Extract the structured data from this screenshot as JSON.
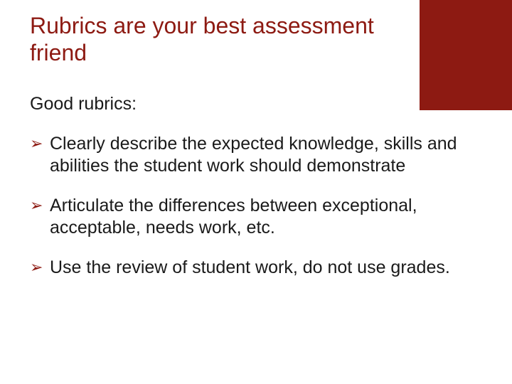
{
  "colors": {
    "title": "#8d1a12",
    "body_text": "#1a1a1a",
    "bullet_arrow": "#8d1a12",
    "corner_block": "#8d1a12",
    "background": "#ffffff"
  },
  "layout": {
    "corner_block": {
      "width": 130,
      "height": 155
    }
  },
  "title": "Rubrics are your best assessment friend",
  "subheading": "Good rubrics:",
  "bullets": [
    "Clearly describe the expected knowledge, skills and abilities the student work should demonstrate",
    "Articulate the differences between exceptional, acceptable, needs work, etc.",
    "Use the review of student work, do not use grades."
  ],
  "bullet_glyph": "➢"
}
